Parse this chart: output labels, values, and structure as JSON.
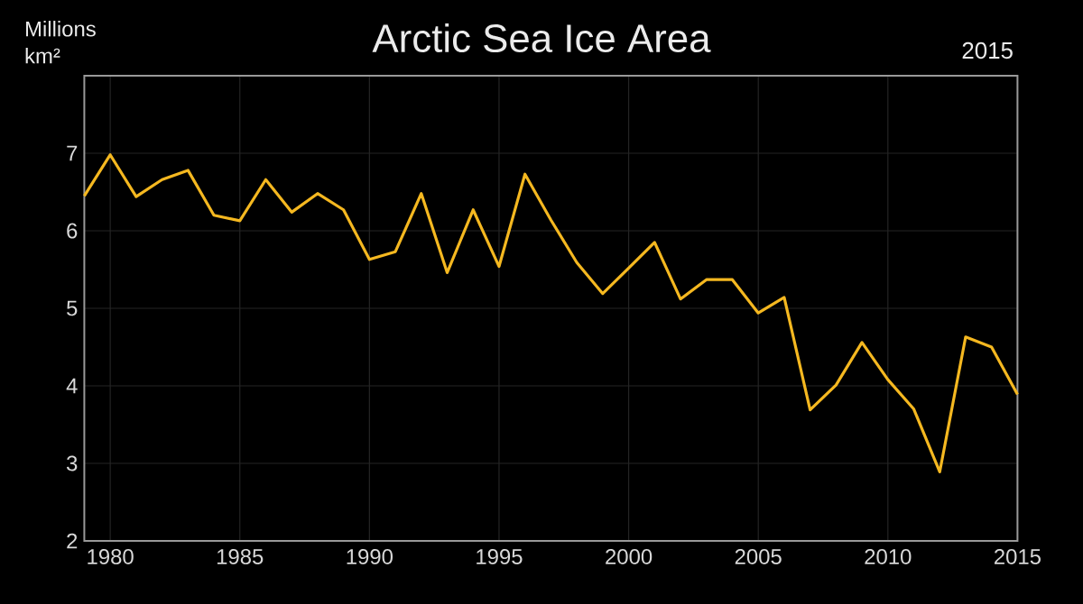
{
  "chart_data": {
    "type": "line",
    "title": "Arctic Sea Ice Area",
    "ylabel": "Millions km²",
    "annotations": [
      "2015"
    ],
    "x": [
      1979,
      1980,
      1981,
      1982,
      1983,
      1984,
      1985,
      1986,
      1987,
      1988,
      1989,
      1990,
      1991,
      1992,
      1993,
      1994,
      1995,
      1996,
      1997,
      1998,
      1999,
      2000,
      2001,
      2002,
      2003,
      2004,
      2005,
      2006,
      2007,
      2008,
      2009,
      2010,
      2011,
      2012,
      2013,
      2014,
      2015
    ],
    "series": [
      {
        "color": "#f5b820",
        "values": [
          6.45,
          6.98,
          6.44,
          6.66,
          6.78,
          6.2,
          6.13,
          6.66,
          6.24,
          6.48,
          6.27,
          5.63,
          5.73,
          6.48,
          5.46,
          6.27,
          5.54,
          6.73,
          6.14,
          5.59,
          5.19,
          5.52,
          5.85,
          5.12,
          5.37,
          5.37,
          4.94,
          5.14,
          3.69,
          4.01,
          4.56,
          4.08,
          3.7,
          2.89,
          4.63,
          4.5,
          3.89
        ]
      }
    ],
    "xlim": [
      1979,
      2015
    ],
    "ylim": [
      2,
      8
    ],
    "xticks": [
      1980,
      1985,
      1990,
      1995,
      2000,
      2005,
      2010,
      2015
    ],
    "yticks": [
      2,
      3,
      4,
      5,
      6,
      7
    ],
    "grid": true,
    "marker": "none",
    "line_style": "solid"
  }
}
